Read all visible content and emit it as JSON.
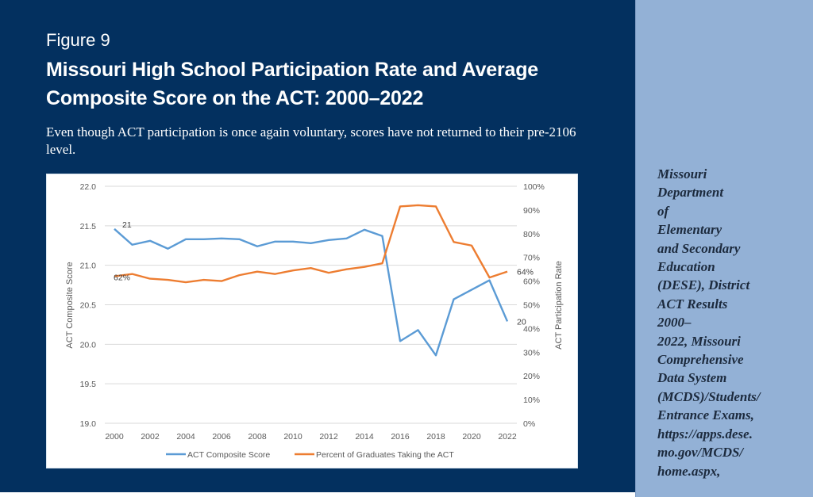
{
  "figure": {
    "label": "Figure 9",
    "title": "Missouri High School Participation Rate and Average Composite Score on the ACT: 2000–2022",
    "subtitle": "Even though ACT participation is once again voluntary, scores have not returned to their pre-2106 level."
  },
  "source": {
    "text": "Missouri\nDepartment\nof\nElementary\nand Secondary\nEducation\n(DESE), District\nACT Results\n2000–\n2022, Missouri\nComprehensive\nData System\n(MCDS)/Students/\nEntrance Exams,\nhttps://apps.dese.\nmo.gov/MCDS/\nhome.aspx,"
  },
  "colors": {
    "navy_panel": "#03305f",
    "source_panel": "#93b1d6",
    "score_line": "#5b9bd5",
    "participation_line": "#ed7d31",
    "gridline": "#d9d9d9"
  },
  "chart_data": {
    "type": "line",
    "title": "Missouri High School Participation Rate and Average Composite Score on the ACT: 2000–2022",
    "x": [
      2000,
      2001,
      2002,
      2003,
      2004,
      2005,
      2006,
      2007,
      2008,
      2009,
      2010,
      2011,
      2012,
      2013,
      2014,
      2015,
      2016,
      2017,
      2018,
      2019,
      2020,
      2021,
      2022
    ],
    "x_ticks": [
      "2000",
      "2002",
      "2004",
      "2006",
      "2008",
      "2010",
      "2012",
      "2014",
      "2016",
      "2018",
      "2020",
      "2022"
    ],
    "xlabel": "",
    "ylabel": "ACT Composite Score",
    "y2label": "ACT Participation Rate",
    "ylim": [
      19.0,
      22.0
    ],
    "y2lim": [
      0,
      100
    ],
    "y_ticks": [
      "19.0",
      "19.5",
      "20.0",
      "20.5",
      "21.0",
      "21.5",
      "22.0"
    ],
    "y2_ticks": [
      "0%",
      "10%",
      "20%",
      "30%",
      "40%",
      "50%",
      "60%",
      "70%",
      "80%",
      "90%",
      "100%"
    ],
    "grid": true,
    "legend_position": "bottom",
    "series": [
      {
        "name": "ACT Composite Score",
        "axis": "left",
        "values": [
          21.46,
          21.26,
          21.31,
          21.21,
          21.33,
          21.33,
          21.34,
          21.33,
          21.24,
          21.3,
          21.3,
          21.28,
          21.32,
          21.34,
          21.45,
          21.37,
          20.04,
          20.18,
          19.86,
          20.57,
          20.69,
          20.81,
          20.29
        ],
        "annotations": [
          {
            "x": 2000,
            "text": "21"
          },
          {
            "x": 2022,
            "text": "20"
          }
        ]
      },
      {
        "name": "Percent of Graduates Taking the ACT",
        "axis": "right",
        "values": [
          62,
          63,
          61,
          60.5,
          59.5,
          60.5,
          60,
          62.5,
          64,
          63,
          64.5,
          65.5,
          63.5,
          65,
          66,
          67.5,
          91.5,
          92,
          91.5,
          76.5,
          75,
          61.5,
          64
        ],
        "annotations": [
          {
            "x": 2000,
            "text": "62%"
          },
          {
            "x": 2022,
            "text": "64%"
          }
        ]
      }
    ]
  }
}
